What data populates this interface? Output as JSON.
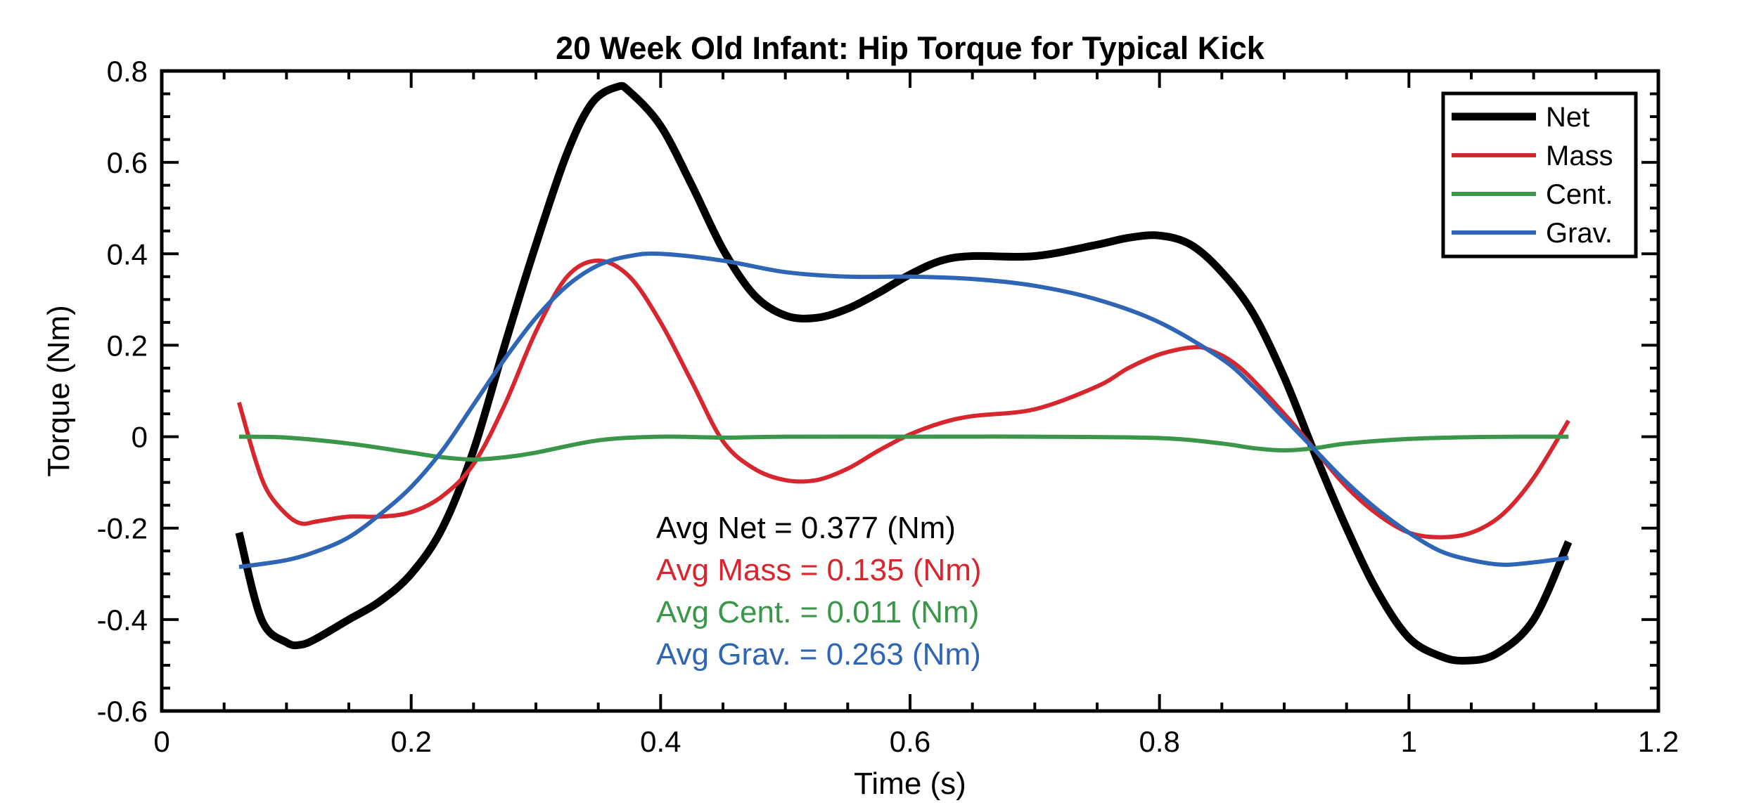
{
  "chart_data": {
    "type": "line",
    "title": "20 Week Old Infant: Hip Torque for Typical Kick",
    "xlabel": "Time (s)",
    "ylabel": "Torque (Nm)",
    "xlim": [
      0,
      1.2
    ],
    "ylim": [
      -0.6,
      0.8
    ],
    "xticks": [
      0,
      0.2,
      0.4,
      0.6,
      0.8,
      1,
      1.2
    ],
    "xtick_labels": [
      "0",
      "0.2",
      "0.4",
      "0.6",
      "0.8",
      "1",
      "1.2"
    ],
    "yticks": [
      -0.6,
      -0.4,
      -0.2,
      0,
      0.2,
      0.4,
      0.6,
      0.8
    ],
    "ytick_labels": [
      "-0.6",
      "-0.4",
      "-0.2",
      "0",
      "0.2",
      "0.4",
      "0.6",
      "0.8"
    ],
    "grid": false,
    "legend_position": "top-right",
    "series": [
      {
        "name": "Net",
        "color": "#000000",
        "x": [
          0.062,
          0.08,
          0.1,
          0.112,
          0.125,
          0.15,
          0.175,
          0.2,
          0.225,
          0.25,
          0.275,
          0.3,
          0.325,
          0.345,
          0.365,
          0.375,
          0.4,
          0.425,
          0.45,
          0.475,
          0.5,
          0.525,
          0.55,
          0.575,
          0.6,
          0.625,
          0.65,
          0.7,
          0.75,
          0.775,
          0.8,
          0.825,
          0.85,
          0.875,
          0.9,
          0.925,
          0.95,
          0.975,
          1.0,
          1.025,
          1.045,
          1.07,
          1.1,
          1.128
        ],
        "y": [
          -0.21,
          -0.4,
          -0.45,
          -0.455,
          -0.44,
          -0.4,
          -0.36,
          -0.3,
          -0.2,
          -0.03,
          0.2,
          0.42,
          0.62,
          0.73,
          0.765,
          0.755,
          0.68,
          0.55,
          0.41,
          0.31,
          0.265,
          0.26,
          0.28,
          0.315,
          0.355,
          0.385,
          0.395,
          0.395,
          0.42,
          0.435,
          0.44,
          0.42,
          0.36,
          0.27,
          0.13,
          -0.04,
          -0.2,
          -0.34,
          -0.44,
          -0.48,
          -0.49,
          -0.475,
          -0.4,
          -0.23
        ]
      },
      {
        "name": "Mass",
        "color": "#d7262d",
        "x": [
          0.062,
          0.075,
          0.085,
          0.1,
          0.112,
          0.125,
          0.15,
          0.175,
          0.2,
          0.225,
          0.25,
          0.275,
          0.3,
          0.325,
          0.35,
          0.375,
          0.4,
          0.425,
          0.45,
          0.475,
          0.5,
          0.525,
          0.55,
          0.575,
          0.6,
          0.625,
          0.65,
          0.7,
          0.75,
          0.775,
          0.8,
          0.825,
          0.84,
          0.865,
          0.9,
          0.925,
          0.95,
          0.975,
          1.0,
          1.025,
          1.05,
          1.075,
          1.1,
          1.128
        ],
        "y": [
          0.075,
          -0.05,
          -0.12,
          -0.17,
          -0.19,
          -0.185,
          -0.175,
          -0.175,
          -0.165,
          -0.13,
          -0.06,
          0.07,
          0.23,
          0.35,
          0.385,
          0.35,
          0.25,
          0.12,
          -0.01,
          -0.07,
          -0.095,
          -0.095,
          -0.07,
          -0.03,
          0.005,
          0.03,
          0.045,
          0.06,
          0.11,
          0.15,
          0.18,
          0.195,
          0.19,
          0.15,
          0.05,
          -0.03,
          -0.11,
          -0.17,
          -0.21,
          -0.22,
          -0.21,
          -0.17,
          -0.09,
          0.035
        ]
      },
      {
        "name": "Cent.",
        "color": "#3a9648",
        "x": [
          0.062,
          0.1,
          0.15,
          0.2,
          0.225,
          0.25,
          0.275,
          0.3,
          0.35,
          0.4,
          0.45,
          0.5,
          0.6,
          0.7,
          0.8,
          0.85,
          0.875,
          0.9,
          0.925,
          0.95,
          1.0,
          1.05,
          1.1,
          1.128
        ],
        "y": [
          0,
          -0.002,
          -0.015,
          -0.035,
          -0.045,
          -0.05,
          -0.045,
          -0.035,
          -0.008,
          0,
          -0.002,
          0,
          0,
          0,
          -0.003,
          -0.015,
          -0.025,
          -0.03,
          -0.025,
          -0.015,
          -0.005,
          -0.001,
          0,
          0
        ]
      },
      {
        "name": "Grav.",
        "color": "#2e65b5",
        "x": [
          0.062,
          0.1,
          0.125,
          0.15,
          0.175,
          0.2,
          0.225,
          0.25,
          0.275,
          0.3,
          0.325,
          0.35,
          0.375,
          0.4,
          0.45,
          0.5,
          0.55,
          0.6,
          0.65,
          0.7,
          0.75,
          0.8,
          0.85,
          0.875,
          0.9,
          0.925,
          0.95,
          0.975,
          1.0,
          1.025,
          1.05,
          1.075,
          1.1,
          1.128
        ],
        "y": [
          -0.285,
          -0.27,
          -0.25,
          -0.22,
          -0.17,
          -0.11,
          -0.03,
          0.07,
          0.17,
          0.26,
          0.33,
          0.375,
          0.395,
          0.4,
          0.385,
          0.36,
          0.35,
          0.35,
          0.345,
          0.33,
          0.3,
          0.25,
          0.17,
          0.11,
          0.04,
          -0.03,
          -0.1,
          -0.16,
          -0.21,
          -0.25,
          -0.27,
          -0.28,
          -0.275,
          -0.265
        ]
      }
    ],
    "annotations": [
      {
        "text": "Avg Net = 0.377 (Nm)",
        "color": "#000000"
      },
      {
        "text": "Avg Mass = 0.135 (Nm)",
        "color": "#d7262d"
      },
      {
        "text": "Avg Cent. = 0.011 (Nm)",
        "color": "#3a9648"
      },
      {
        "text": "Avg Grav. = 0.263 (Nm)",
        "color": "#2e65b5"
      }
    ]
  }
}
